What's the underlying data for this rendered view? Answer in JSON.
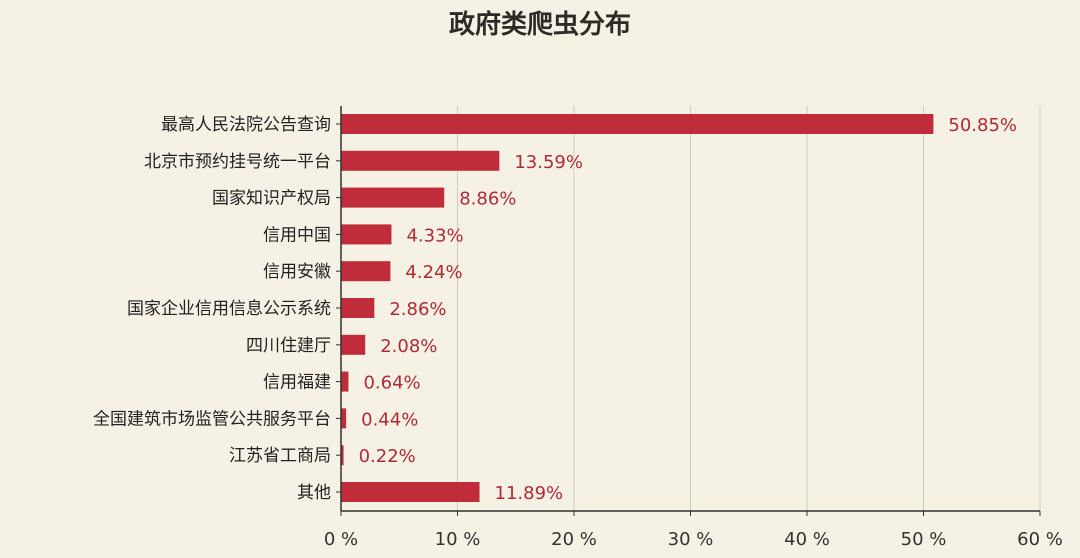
{
  "chart_data": {
    "type": "bar",
    "orientation": "horizontal",
    "title": "政府类爬虫分布",
    "categories": [
      "最高人民法院公告查询",
      "北京市预约挂号统一平台",
      "国家知识产权局",
      "信用中国",
      "信用安徽",
      "国家企业信用信息公示系统",
      "四川住建厅",
      "信用福建",
      "全国建筑市场监管公共服务平台",
      "江苏省工商局",
      "其他"
    ],
    "values": [
      50.85,
      13.59,
      8.86,
      4.33,
      4.24,
      2.86,
      2.08,
      0.64,
      0.44,
      0.22,
      11.89
    ],
    "value_labels": [
      "50.85%",
      "13.59%",
      "8.86%",
      "4.33%",
      "4.24%",
      "2.86%",
      "2.08%",
      "0.64%",
      "0.44%",
      "0.22%",
      "11.89%"
    ],
    "x_ticks": [
      0,
      10,
      20,
      30,
      40,
      50,
      60
    ],
    "x_tick_labels": [
      "0 %",
      "10 %",
      "20 %",
      "30 %",
      "40 %",
      "50 %",
      "60 %"
    ],
    "xlim": [
      0,
      60
    ],
    "xlabel": "",
    "ylabel": "",
    "grid": "vertical",
    "colors": {
      "bar": "#c12c3a",
      "value_label": "#b02a37",
      "title": "#2f2a26",
      "category_label": "#222222",
      "axis": "#333333",
      "grid": "#d2cbbd",
      "background": "#f6f1e5"
    }
  }
}
